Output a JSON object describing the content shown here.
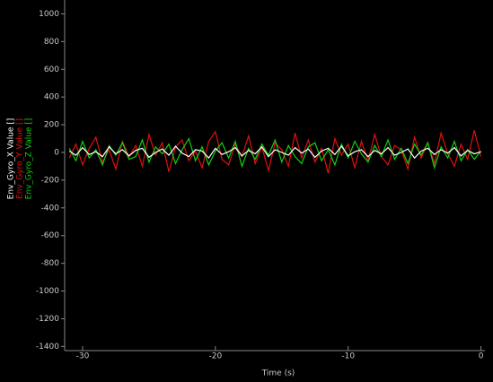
{
  "chart_data": {
    "type": "line",
    "xlabel": "Time (s)",
    "x": [
      -31,
      -30.5,
      -30,
      -29.5,
      -29,
      -28.5,
      -28,
      -27.5,
      -27,
      -26.5,
      -26,
      -25.5,
      -25,
      -24.5,
      -24,
      -23.5,
      -23,
      -22.5,
      -22,
      -21.5,
      -21,
      -20.5,
      -20,
      -19.5,
      -19,
      -18.5,
      -18,
      -17.5,
      -17,
      -16.5,
      -16,
      -15.5,
      -15,
      -14.5,
      -14,
      -13.5,
      -13,
      -12.5,
      -12,
      -11.5,
      -11,
      -10.5,
      -10,
      -9.5,
      -9,
      -8.5,
      -8,
      -7.5,
      -7,
      -6.5,
      -6,
      -5.5,
      -5,
      -4.5,
      -4,
      -3.5,
      -3,
      -2.5,
      -2,
      -1.5,
      -1,
      -0.5,
      0
    ],
    "series": [
      {
        "name": "Env_Gyro_X Value []",
        "color": "#ffffff",
        "values": [
          10,
          -20,
          35,
          -15,
          5,
          -30,
          40,
          -10,
          20,
          -25,
          15,
          30,
          -35,
          0,
          25,
          -20,
          45,
          -5,
          -30,
          20,
          10,
          -40,
          30,
          -15,
          5,
          35,
          -25,
          15,
          -10,
          40,
          -30,
          20,
          0,
          -20,
          35,
          -5,
          25,
          -35,
          10,
          30,
          -15,
          45,
          -25,
          5,
          20,
          -30,
          15,
          -10,
          35,
          -20,
          0,
          25,
          -40,
          10,
          30,
          -15,
          20,
          -5,
          35,
          -25,
          15,
          -10,
          5
        ]
      },
      {
        "name": "Env_Gyro_Y Value []",
        "color": "#e01010",
        "values": [
          -40,
          60,
          -90,
          30,
          110,
          -70,
          20,
          -120,
          80,
          -30,
          50,
          -100,
          130,
          -20,
          70,
          -140,
          40,
          90,
          -60,
          10,
          -110,
          80,
          150,
          -50,
          -90,
          60,
          -30,
          120,
          -80,
          40,
          -130,
          70,
          20,
          -100,
          140,
          -40,
          90,
          -70,
          30,
          -150,
          100,
          -20,
          60,
          -110,
          80,
          -60,
          130,
          -30,
          -90,
          50,
          20,
          -120,
          110,
          -40,
          70,
          -80,
          140,
          -10,
          -100,
          60,
          -50,
          160,
          -30
        ]
      },
      {
        "name": "Env_Gyro_Z Value []",
        "color": "#10d010",
        "values": [
          30,
          -60,
          80,
          -40,
          20,
          -90,
          50,
          -20,
          70,
          -50,
          -30,
          90,
          -70,
          40,
          -10,
          60,
          -80,
          20,
          100,
          -60,
          40,
          -90,
          10,
          70,
          -40,
          80,
          -100,
          30,
          -50,
          60,
          -20,
          90,
          -70,
          50,
          -30,
          -80,
          40,
          70,
          -60,
          20,
          -90,
          60,
          -40,
          80,
          -10,
          -70,
          50,
          -30,
          90,
          -50,
          30,
          -80,
          60,
          -20,
          70,
          -110,
          40,
          -40,
          80,
          -60,
          20,
          -50,
          10
        ]
      }
    ],
    "xlim": [
      -31.35,
      0.3
    ],
    "xticks": [
      -30,
      -20,
      -10,
      0
    ],
    "ylim": [
      -1430,
      1100
    ],
    "yticks": [
      1000,
      800,
      600,
      400,
      200,
      0,
      -200,
      -400,
      -600,
      -800,
      -1000,
      -1200,
      -1400
    ],
    "grid": false
  }
}
